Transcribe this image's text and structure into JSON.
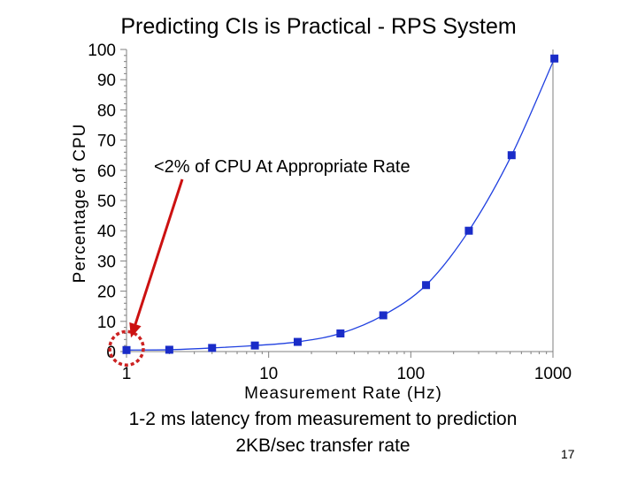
{
  "slide": {
    "title": "Predicting CIs is Practical - RPS System",
    "caption_line1": "1-2 ms latency from measurement to prediction",
    "caption_line2": "2KB/sec transfer rate",
    "slide_number": "17"
  },
  "chart_data": {
    "type": "line",
    "title": "Predicting CIs is Practical - RPS System",
    "xlabel": "Measurement Rate (Hz)",
    "ylabel": "Percentage of CPU",
    "x_scale": "log",
    "xlim": [
      1,
      1000
    ],
    "ylim": [
      0,
      100
    ],
    "x_ticks": [
      {
        "value": 1,
        "label": "1"
      },
      {
        "value": 10,
        "label": "10"
      },
      {
        "value": 100,
        "label": "100"
      },
      {
        "value": 1000,
        "label": "1000"
      }
    ],
    "y_ticks": [
      {
        "value": 0,
        "label": "0"
      },
      {
        "value": 10,
        "label": "10"
      },
      {
        "value": 20,
        "label": "20"
      },
      {
        "value": 30,
        "label": "30"
      },
      {
        "value": 40,
        "label": "40"
      },
      {
        "value": 50,
        "label": "50"
      },
      {
        "value": 60,
        "label": "60"
      },
      {
        "value": 70,
        "label": "70"
      },
      {
        "value": 80,
        "label": "80"
      },
      {
        "value": 90,
        "label": "90"
      },
      {
        "value": 100,
        "label": "100"
      }
    ],
    "grid": false,
    "legend": "none",
    "series": [
      {
        "x": [
          1,
          2,
          4,
          8,
          16,
          32,
          64,
          128,
          256,
          512,
          1024
        ],
        "y": [
          0.5,
          0.6,
          1.2,
          2.0,
          3.2,
          6.0,
          12.0,
          22.0,
          40.0,
          65.0,
          97.0
        ],
        "color": "#1a2cc8",
        "line_color": "#2040e0"
      }
    ],
    "annotation": {
      "text": "<2% of CPU At Appropriate Rate",
      "target_x": 1,
      "target_y": 0.5,
      "arrow_color": "#cc1111",
      "circle_color": "#cc2222"
    }
  }
}
